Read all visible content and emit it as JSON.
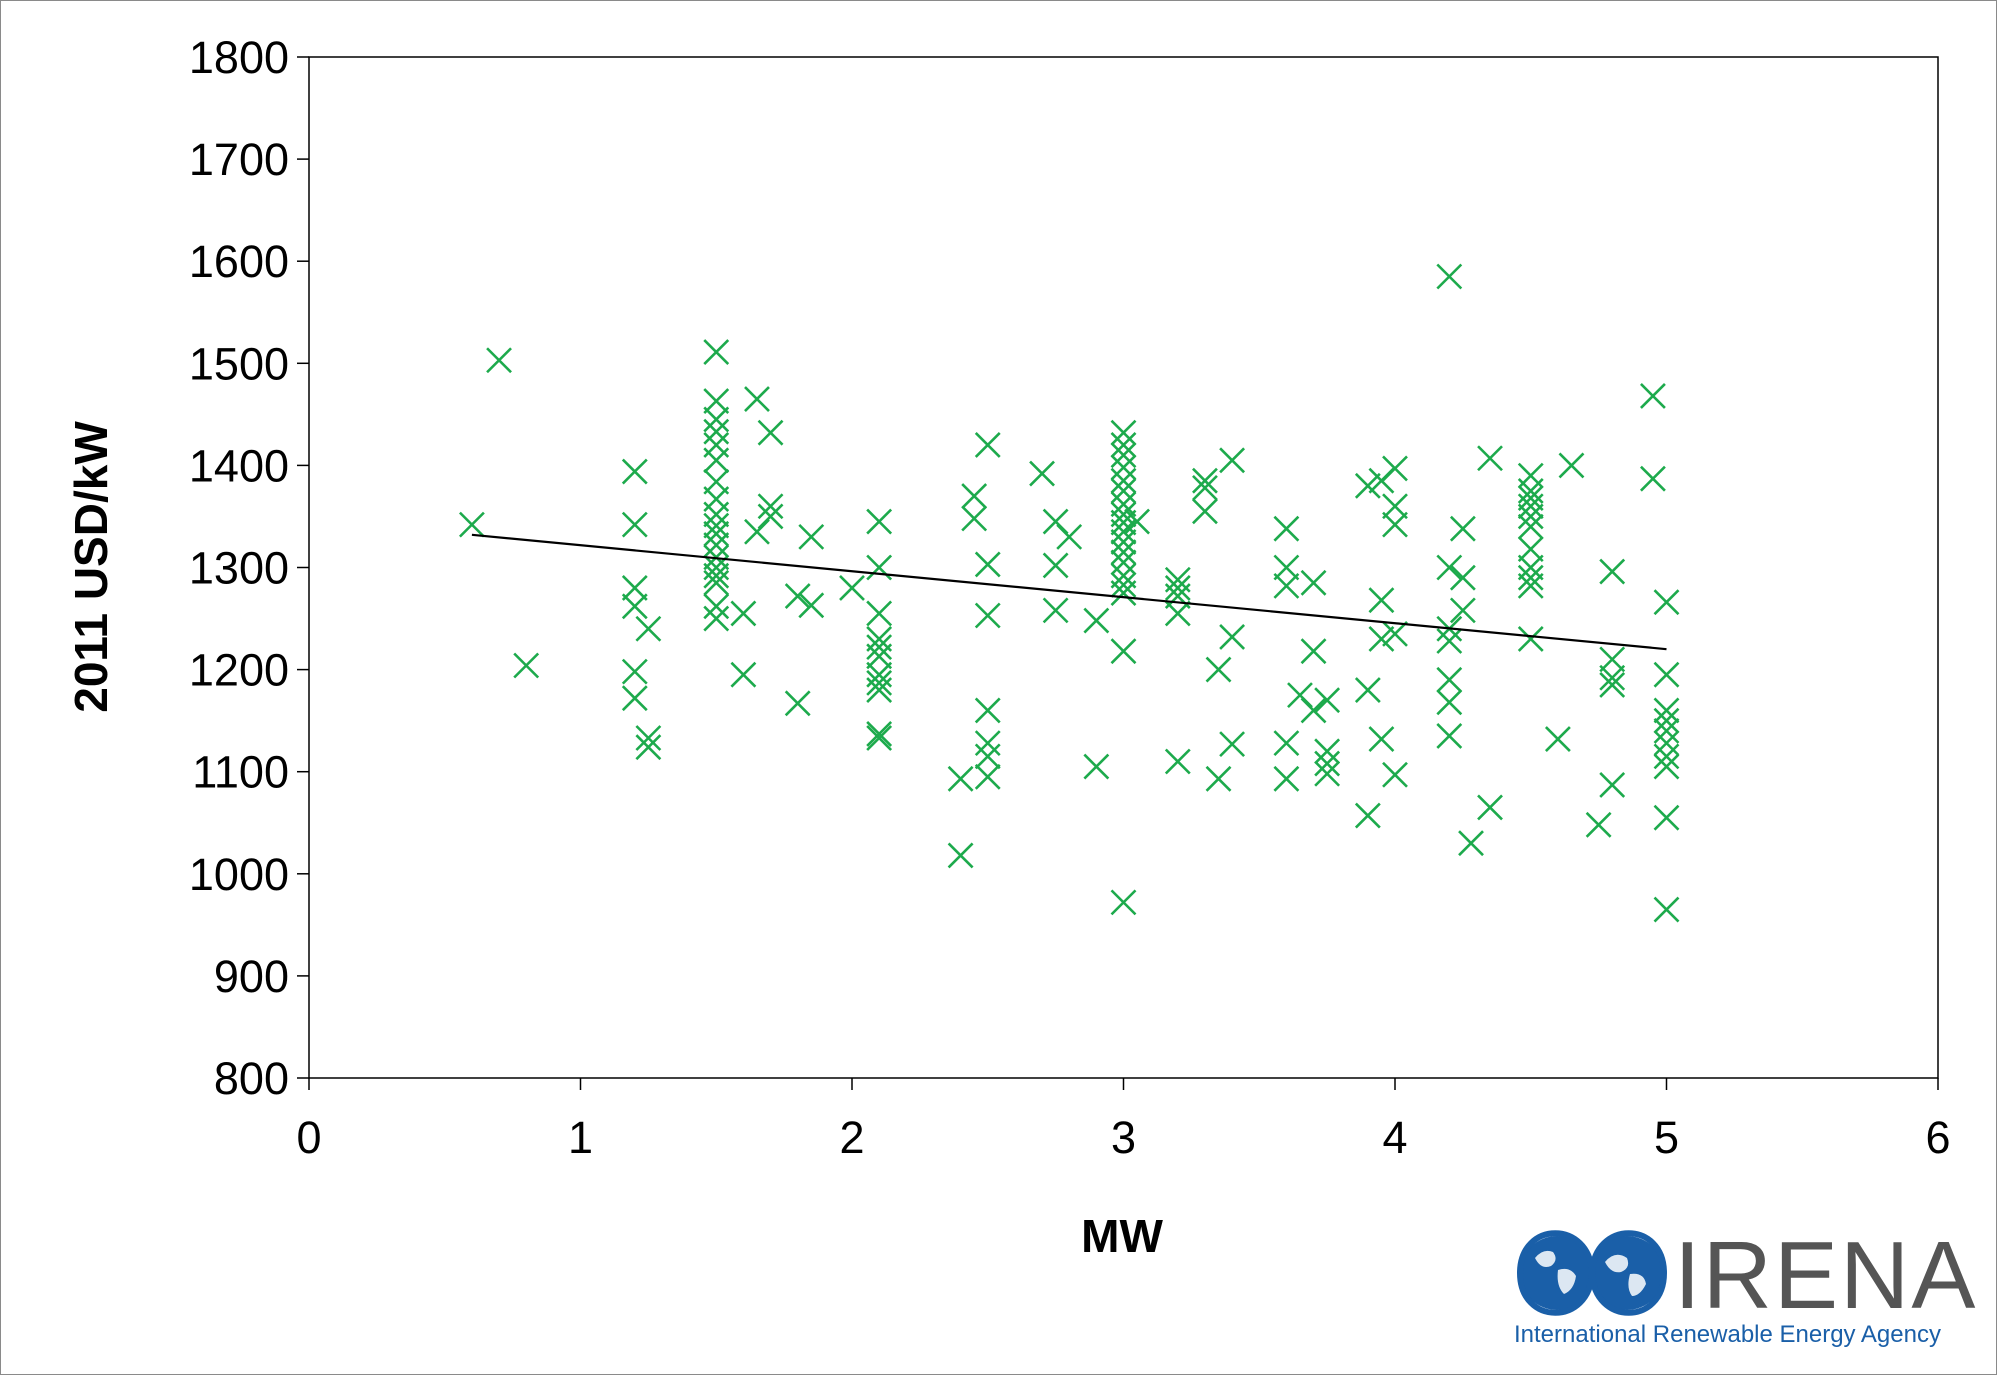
{
  "chart_data": {
    "type": "scatter",
    "title": "",
    "xlabel": "MW",
    "ylabel": "2011 USD/kW",
    "xlim": [
      0,
      6
    ],
    "ylim": [
      800,
      1800
    ],
    "xticks": [
      "0",
      "1",
      "2",
      "3",
      "4",
      "5",
      "6"
    ],
    "yticks": [
      "800",
      "900",
      "1000",
      "1100",
      "1200",
      "1300",
      "1400",
      "1500",
      "1600",
      "1700",
      "1800"
    ],
    "grid": false,
    "legend": "none",
    "marker": "x",
    "marker_color": "#1daa4c",
    "trendline": {
      "color": "#000000",
      "x": [
        0.6,
        5.0
      ],
      "y": [
        1332,
        1220
      ]
    },
    "points": [
      [
        0.6,
        1342
      ],
      [
        0.7,
        1503
      ],
      [
        0.8,
        1204
      ],
      [
        1.2,
        1394
      ],
      [
        1.2,
        1342
      ],
      [
        1.2,
        1280
      ],
      [
        1.2,
        1262
      ],
      [
        1.2,
        1198
      ],
      [
        1.2,
        1172
      ],
      [
        1.25,
        1240
      ],
      [
        1.25,
        1133
      ],
      [
        1.25,
        1124
      ],
      [
        1.5,
        1511
      ],
      [
        1.5,
        1463
      ],
      [
        1.5,
        1445
      ],
      [
        1.5,
        1433
      ],
      [
        1.5,
        1420
      ],
      [
        1.5,
        1405
      ],
      [
        1.5,
        1384
      ],
      [
        1.5,
        1367
      ],
      [
        1.5,
        1352
      ],
      [
        1.5,
        1341
      ],
      [
        1.5,
        1333
      ],
      [
        1.5,
        1322
      ],
      [
        1.5,
        1310
      ],
      [
        1.5,
        1300
      ],
      [
        1.5,
        1292
      ],
      [
        1.5,
        1285
      ],
      [
        1.5,
        1262
      ],
      [
        1.5,
        1250
      ],
      [
        1.6,
        1255
      ],
      [
        1.6,
        1195
      ],
      [
        1.65,
        1465
      ],
      [
        1.65,
        1335
      ],
      [
        1.7,
        1432
      ],
      [
        1.7,
        1360
      ],
      [
        1.7,
        1350
      ],
      [
        1.8,
        1272
      ],
      [
        1.8,
        1167
      ],
      [
        1.85,
        1330
      ],
      [
        1.85,
        1263
      ],
      [
        2.0,
        1280
      ],
      [
        2.1,
        1345
      ],
      [
        2.1,
        1300
      ],
      [
        2.1,
        1255
      ],
      [
        2.1,
        1230
      ],
      [
        2.1,
        1222
      ],
      [
        2.1,
        1213
      ],
      [
        2.1,
        1195
      ],
      [
        2.1,
        1187
      ],
      [
        2.1,
        1180
      ],
      [
        2.1,
        1137
      ],
      [
        2.1,
        1133
      ],
      [
        2.4,
        1018
      ],
      [
        2.4,
        1093
      ],
      [
        2.45,
        1370
      ],
      [
        2.45,
        1348
      ],
      [
        2.5,
        1420
      ],
      [
        2.5,
        1303
      ],
      [
        2.5,
        1253
      ],
      [
        2.5,
        1160
      ],
      [
        2.5,
        1128
      ],
      [
        2.5,
        1115
      ],
      [
        2.5,
        1095
      ],
      [
        2.7,
        1392
      ],
      [
        2.75,
        1345
      ],
      [
        2.75,
        1302
      ],
      [
        2.75,
        1258
      ],
      [
        2.8,
        1330
      ],
      [
        2.9,
        1248
      ],
      [
        2.9,
        1105
      ],
      [
        3.0,
        1432
      ],
      [
        3.0,
        1420
      ],
      [
        3.0,
        1410
      ],
      [
        3.0,
        1398
      ],
      [
        3.0,
        1385
      ],
      [
        3.0,
        1375
      ],
      [
        3.0,
        1362
      ],
      [
        3.0,
        1352
      ],
      [
        3.0,
        1344
      ],
      [
        3.0,
        1335
      ],
      [
        3.0,
        1325
      ],
      [
        3.0,
        1315
      ],
      [
        3.0,
        1305
      ],
      [
        3.0,
        1292
      ],
      [
        3.0,
        1283
      ],
      [
        3.0,
        1275
      ],
      [
        3.0,
        1218
      ],
      [
        3.0,
        972
      ],
      [
        3.05,
        1345
      ],
      [
        3.2,
        1288
      ],
      [
        3.2,
        1280
      ],
      [
        3.2,
        1272
      ],
      [
        3.2,
        1255
      ],
      [
        3.2,
        1110
      ],
      [
        3.3,
        1385
      ],
      [
        3.3,
        1378
      ],
      [
        3.3,
        1355
      ],
      [
        3.35,
        1200
      ],
      [
        3.35,
        1093
      ],
      [
        3.4,
        1405
      ],
      [
        3.4,
        1232
      ],
      [
        3.4,
        1127
      ],
      [
        3.6,
        1338
      ],
      [
        3.6,
        1300
      ],
      [
        3.6,
        1282
      ],
      [
        3.6,
        1128
      ],
      [
        3.6,
        1093
      ],
      [
        3.65,
        1175
      ],
      [
        3.7,
        1285
      ],
      [
        3.7,
        1218
      ],
      [
        3.7,
        1160
      ],
      [
        3.75,
        1170
      ],
      [
        3.75,
        1120
      ],
      [
        3.75,
        1108
      ],
      [
        3.75,
        1098
      ],
      [
        3.9,
        1380
      ],
      [
        3.9,
        1180
      ],
      [
        3.9,
        1057
      ],
      [
        3.95,
        1385
      ],
      [
        3.95,
        1268
      ],
      [
        3.95,
        1230
      ],
      [
        3.95,
        1132
      ],
      [
        4.0,
        1397
      ],
      [
        4.0,
        1360
      ],
      [
        4.0,
        1342
      ],
      [
        4.0,
        1235
      ],
      [
        4.0,
        1097
      ],
      [
        4.2,
        1585
      ],
      [
        4.2,
        1300
      ],
      [
        4.2,
        1240
      ],
      [
        4.2,
        1228
      ],
      [
        4.2,
        1190
      ],
      [
        4.2,
        1168
      ],
      [
        4.2,
        1135
      ],
      [
        4.25,
        1338
      ],
      [
        4.25,
        1290
      ],
      [
        4.25,
        1258
      ],
      [
        4.28,
        1030
      ],
      [
        4.35,
        1407
      ],
      [
        4.35,
        1065
      ],
      [
        4.5,
        1390
      ],
      [
        4.5,
        1375
      ],
      [
        4.5,
        1368
      ],
      [
        4.5,
        1360
      ],
      [
        4.5,
        1350
      ],
      [
        4.5,
        1340
      ],
      [
        4.5,
        1318
      ],
      [
        4.5,
        1300
      ],
      [
        4.5,
        1290
      ],
      [
        4.5,
        1282
      ],
      [
        4.5,
        1230
      ],
      [
        4.6,
        1132
      ],
      [
        4.65,
        1400
      ],
      [
        4.75,
        1048
      ],
      [
        4.8,
        1296
      ],
      [
        4.8,
        1210
      ],
      [
        4.8,
        1192
      ],
      [
        4.8,
        1185
      ],
      [
        4.8,
        1087
      ],
      [
        4.95,
        1468
      ],
      [
        4.95,
        1387
      ],
      [
        5.0,
        1266
      ],
      [
        5.0,
        1195
      ],
      [
        5.0,
        1160
      ],
      [
        5.0,
        1150
      ],
      [
        5.0,
        1140
      ],
      [
        5.0,
        1128
      ],
      [
        5.0,
        1115
      ],
      [
        5.0,
        1105
      ],
      [
        5.0,
        1055
      ],
      [
        5.0,
        965
      ]
    ]
  },
  "logo": {
    "name": "IRENA",
    "subtitle": "International Renewable Energy Agency",
    "blue": "#1a5fa8"
  }
}
